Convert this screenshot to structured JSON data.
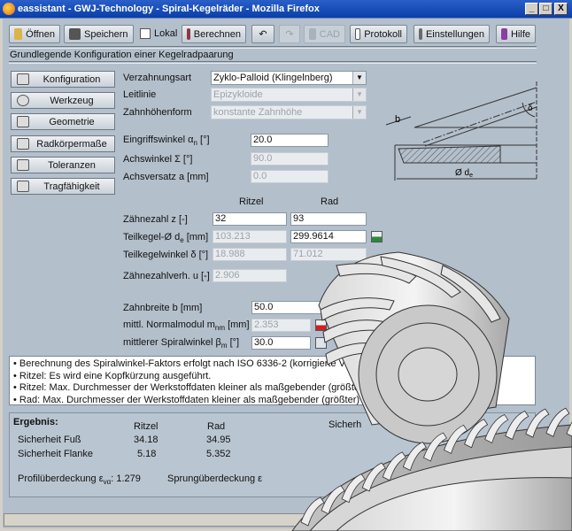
{
  "window": {
    "title": "eassistant - GWJ-Technology - Spiral-Kegelräder - Mozilla Firefox",
    "min": "_",
    "max": "□",
    "close": "X"
  },
  "toolbar": {
    "open": "Öffnen",
    "save": "Speichern",
    "local": "Lokal",
    "calculate": "Berechnen",
    "undo": "↶",
    "redo": "↷",
    "cad": "CAD",
    "protocol": "Protokoll",
    "settings": "Einstellungen",
    "help": "Hilfe"
  },
  "section_title": "Grundlegende Konfiguration einer Kegelradpaarung",
  "nav": [
    {
      "label": "Konfiguration"
    },
    {
      "label": "Werkzeug"
    },
    {
      "label": "Geometrie"
    },
    {
      "label": "Radkörpermaße"
    },
    {
      "label": "Toleranzen"
    },
    {
      "label": "Tragfähigkeit"
    }
  ],
  "config": {
    "verzahnungsart": {
      "label": "Verzahnungsart",
      "value": "Zyklo-Palloid (Klingelnberg)"
    },
    "leitlinie": {
      "label": "Leitlinie",
      "value": "Epizykloide"
    },
    "zahnhoehenform": {
      "label": "Zahnhöhenform",
      "value": "konstante Zahnhöhe"
    },
    "eingriffswinkel": {
      "label": "Eingriffswinkel α",
      "sub": "n",
      "unit": " [°]",
      "value": "20.0"
    },
    "achswinkel": {
      "label": "Achswinkel Σ [°]",
      "value": "90.0"
    },
    "achsversatz": {
      "label": "Achsversatz a [mm]",
      "value": "0.0"
    }
  },
  "gear_table": {
    "col_ritzel": "Ritzel",
    "col_rad": "Rad",
    "zaehnezahl": {
      "label": "Zähnezahl z [-]",
      "ritzel": "32",
      "rad": "93"
    },
    "teilkegel_d": {
      "label": "Teilkegel-Ø d",
      "sub": "e",
      "unit": " [mm]",
      "ritzel": "103.213",
      "rad": "299.9614"
    },
    "teilkegelwinkel": {
      "label": "Teilkegelwinkel δ [°]",
      "ritzel": "18.988",
      "rad": "71.012"
    },
    "uebersetzung": {
      "label": "Zähnezahlverh. u [-]",
      "value": "2.906"
    },
    "empf_header": "Empfo",
    "zahnbreite": {
      "label": "Zahnbreite b [mm]",
      "value": "50.0",
      "empf": "31"
    },
    "normalmodul": {
      "label": "mittl. Normalmodul m",
      "sub": "nm",
      "unit": " [mm]",
      "value": "2.353"
    },
    "spiralwinkel": {
      "label": "mittlerer Spiralwinkel β",
      "sub": "m",
      "unit": " [°]",
      "value": "30.0"
    }
  },
  "diagram": {
    "b": "b",
    "delta": "δ",
    "de": "Ø d",
    "de_sub": "e"
  },
  "messages": [
    "• Berechnung des Spiralwinkel-Faktors erfolgt nach ISO 6336-2 (korrigierte Vers",
    "• Ritzel: Es wird eine Kopfkürzung ausgeführt.",
    "• Ritzel: Max. Durchmesser der Werkstoffdaten kleiner als maßgebender (größter)",
    "• Rad: Max. Durchmesser der Werkstoffdaten kleiner als maßgebender (größter) Rad-"
  ],
  "result": {
    "title": "Ergebnis:",
    "col_ritzel": "Ritzel",
    "col_rad": "Rad",
    "col_sicherheit": "Sicherh",
    "rows": [
      {
        "label": "Sicherheit Fuß",
        "ritzel": "34.18",
        "rad": "34.95"
      },
      {
        "label": "Sicherheit Flanke",
        "ritzel": "5.18",
        "rad": "5.352"
      }
    ],
    "profil_label": "Profilüberdeckung ε",
    "profil_sub": "vα",
    "profil_value": ": 1.279",
    "sprung_label": "Sprungüberdeckung ε"
  }
}
